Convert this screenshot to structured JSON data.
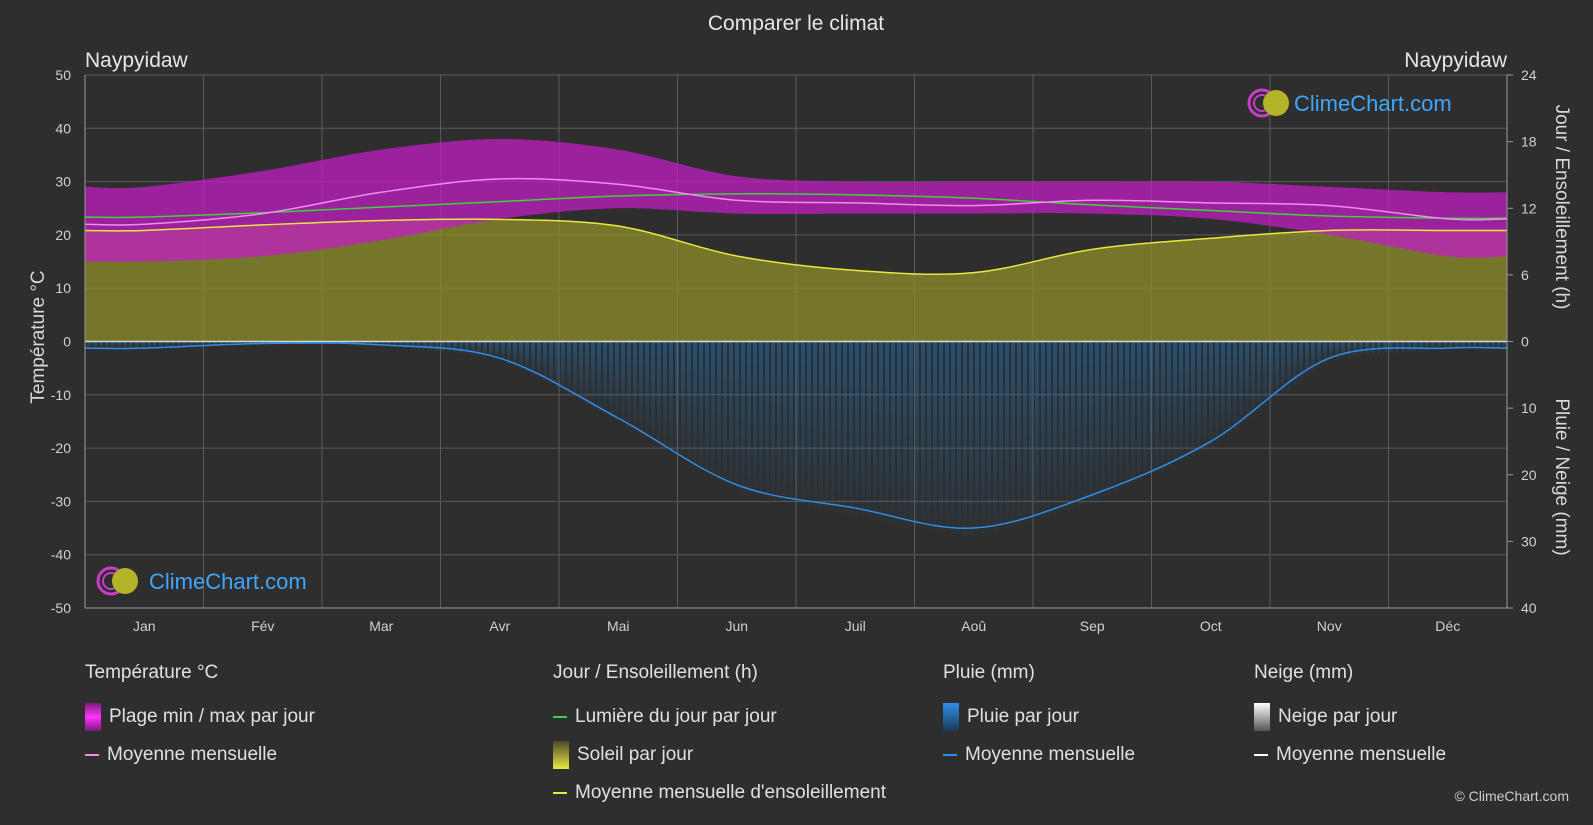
{
  "header": {
    "title": "Comparer le climat",
    "city_left": "Naypyidaw",
    "city_right": "Naypyidaw",
    "copyright": "© ClimeChart.com",
    "brand": "ClimeChart.com"
  },
  "colors": {
    "temp_band": "#c21ec2",
    "temp_avg": "#f08cf0",
    "daylight": "#3cd23c",
    "sun_band": "#8f8f2a",
    "sun_avg": "#e8e840",
    "rain_band": "#1f6fae",
    "rain_avg": "#2e8ee8",
    "snow_avg": "#ffffff"
  },
  "chart_data": {
    "type": "area",
    "categories": [
      "Jan",
      "Fév",
      "Mar",
      "Avr",
      "Mai",
      "Jun",
      "Juil",
      "Aoû",
      "Sep",
      "Oct",
      "Nov",
      "Déc"
    ],
    "y_left": {
      "label": "Température °C",
      "range": [
        -50,
        50
      ],
      "ticks": [
        50,
        40,
        30,
        20,
        10,
        0,
        -10,
        -20,
        -30,
        -40,
        -50
      ]
    },
    "y_right_top": {
      "label": "Jour / Ensoleillement (h)",
      "range": [
        0,
        24
      ],
      "ticks": [
        24,
        18,
        12,
        6,
        0
      ]
    },
    "y_right_bottom": {
      "label": "Pluie / Neige (mm)",
      "range": [
        0,
        40
      ],
      "ticks": [
        10,
        20,
        30,
        40
      ]
    },
    "series": [
      {
        "name": "Plage min / max par jour",
        "type": "band",
        "min": [
          15,
          16,
          19,
          23,
          25,
          24,
          24,
          24,
          24,
          23,
          20,
          16
        ],
        "max": [
          29,
          32,
          36,
          38,
          36,
          31,
          30,
          30,
          30,
          30,
          29,
          28
        ]
      },
      {
        "name": "Moyenne mensuelle",
        "group": "temperature",
        "values": [
          22,
          24,
          28,
          30.5,
          29.5,
          26.5,
          26,
          25.5,
          26.5,
          26,
          25.5,
          23
        ]
      },
      {
        "name": "Lumière du jour par jour",
        "group": "sun",
        "values": [
          11.2,
          11.6,
          12.1,
          12.6,
          13.1,
          13.3,
          13.2,
          12.9,
          12.3,
          11.8,
          11.3,
          11.1
        ]
      },
      {
        "name": "Moyenne mensuelle d'ensoleillement",
        "group": "sun",
        "values": [
          10,
          10.5,
          10.9,
          11,
          10.4,
          7.7,
          6.4,
          6.2,
          8.3,
          9.3,
          10,
          10
        ]
      },
      {
        "name": "Moyenne mensuelle",
        "group": "rain",
        "values": [
          1,
          0.3,
          0.5,
          2.5,
          11.5,
          21.5,
          25,
          28,
          23,
          15,
          2.5,
          1
        ]
      },
      {
        "name": "Moyenne mensuelle",
        "group": "snow",
        "values": [
          0,
          0,
          0,
          0,
          0,
          0,
          0,
          0,
          0,
          0,
          0,
          0
        ]
      }
    ]
  },
  "legend": {
    "temperature": {
      "title": "Température °C",
      "band": "Plage min / max par jour",
      "avg": "Moyenne mensuelle"
    },
    "sun": {
      "title": "Jour / Ensoleillement (h)",
      "daylight": "Lumière du jour par jour",
      "band": "Soleil par jour",
      "avg": "Moyenne mensuelle d'ensoleillement"
    },
    "rain": {
      "title": "Pluie (mm)",
      "band": "Pluie par jour",
      "avg": "Moyenne mensuelle"
    },
    "snow": {
      "title": "Neige (mm)",
      "band": "Neige par jour",
      "avg": "Moyenne mensuelle"
    }
  }
}
